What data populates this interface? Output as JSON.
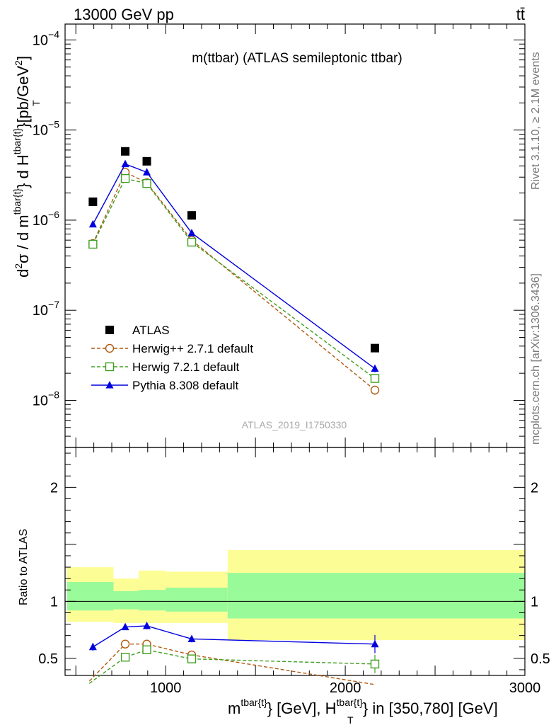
{
  "header": {
    "energy_label": "13000 GeV pp",
    "process_label": "tt̄"
  },
  "side_labels": {
    "rivet": "Rivet 3.1.10, ≥ 2.1M events",
    "mcplots": "mcplots.cern.ch [arXiv:1306.3436]"
  },
  "chart_data": [
    {
      "type": "scatter",
      "panel": "main",
      "title": "m(ttbar) (ATLAS semileptonic ttbar)",
      "ylabel": "d²σ / d m^{tbar{t}} d H_T^{tbar{t}} [pb/GeV²]",
      "watermark": "ATLAS_2019_I1750330",
      "yscale": "log",
      "xlim": [
        440,
        3000
      ],
      "ylim": [
        3e-09,
        0.00015
      ],
      "yticks": [
        {
          "base": "10",
          "exp": "−4",
          "value": 0.0001
        },
        {
          "base": "10",
          "exp": "−5",
          "value": 1e-05
        },
        {
          "base": "10",
          "exp": "−6",
          "value": 1e-06
        },
        {
          "base": "10",
          "exp": "−7",
          "value": 1e-07
        },
        {
          "base": "10",
          "exp": "−8",
          "value": 1e-08
        }
      ],
      "legend_position": "bottom-left",
      "series": [
        {
          "name": "ATLAS",
          "style": "data",
          "color": "#000000",
          "x": [
            595,
            775,
            895,
            1145,
            2165
          ],
          "y": [
            1.6e-06,
            5.8e-06,
            4.5e-06,
            1.13e-06,
            3.8e-08
          ]
        },
        {
          "name": "Herwig++ 2.7.1 default",
          "style": "dashed",
          "marker": "open-circle",
          "color": "#b05a10",
          "x": [
            595,
            775,
            895,
            1145,
            2165
          ],
          "y": [
            5.5e-07,
            3.4e-06,
            2.6e-06,
            6e-07,
            1.3e-08
          ],
          "yerr": [
            4e-09,
            1.5e-07,
            1e-07,
            3e-09,
            1.5e-09
          ]
        },
        {
          "name": "Herwig 7.2.1 default",
          "style": "dashed",
          "marker": "open-square",
          "color": "#3f9f1f",
          "x": [
            595,
            775,
            895,
            1145,
            2165
          ],
          "y": [
            5.4e-07,
            2.9e-06,
            2.55e-06,
            5.7e-07,
            1.75e-08
          ],
          "yerr": [
            4e-09,
            1.2e-07,
            1e-07,
            3e-09,
            1.5e-09
          ]
        },
        {
          "name": "Pythia 8.308 default",
          "style": "solid",
          "marker": "filled-triangle",
          "color": "#0000dd",
          "x": [
            595,
            775,
            895,
            1145,
            2165
          ],
          "y": [
            9e-07,
            4.2e-06,
            3.4e-06,
            7.2e-07,
            2.25e-08
          ],
          "yerr": [
            5e-09,
            1.5e-07,
            1.2e-07,
            3e-09,
            2e-09
          ]
        }
      ]
    },
    {
      "type": "line",
      "panel": "ratio",
      "ylabel": "Ratio to ATLAS",
      "xlabel_parts": [
        "m",
        "tbar{t}",
        "} [GeV], H",
        "tbar{t}",
        "T",
        "} in [350,780] [GeV]"
      ],
      "xlim": [
        440,
        3000
      ],
      "ylim": [
        0.35,
        2.35
      ],
      "xticks": [
        1000,
        2000,
        3000
      ],
      "xtick_labels": [
        "1000",
        "2000",
        "3000"
      ],
      "yticks": [
        0.5,
        1,
        2
      ],
      "ytick_labels": [
        "0.5",
        "1",
        "2"
      ],
      "bands": [
        {
          "xlo": 440,
          "xhi": 710,
          "outer": [
            0.82,
            1.3
          ],
          "inner": [
            0.92,
            1.17
          ]
        },
        {
          "xlo": 710,
          "xhi": 850,
          "outer": [
            0.81,
            1.2
          ],
          "inner": [
            0.93,
            1.09
          ]
        },
        {
          "xlo": 850,
          "xhi": 1000,
          "outer": [
            0.81,
            1.27
          ],
          "inner": [
            0.92,
            1.1
          ]
        },
        {
          "xlo": 1000,
          "xhi": 1345,
          "outer": [
            0.81,
            1.26
          ],
          "inner": [
            0.91,
            1.12
          ]
        },
        {
          "xlo": 1345,
          "xhi": 3000,
          "outer": [
            0.66,
            1.45
          ],
          "inner": [
            0.85,
            1.25
          ]
        }
      ],
      "band_colors": {
        "outer": "#fdfd96",
        "inner": "#99fa99"
      },
      "series": [
        {
          "name": "Herwig++ 2.7.1 default",
          "color": "#b05a10",
          "marker": "open-circle",
          "style": "dashed",
          "x": [
            575,
            775,
            895,
            1145,
            2165
          ],
          "y": [
            0.3,
            0.625,
            0.625,
            0.53,
            0.27
          ],
          "yerr": [
            0,
            0.012,
            0.02,
            0.025,
            0
          ]
        },
        {
          "name": "Herwig 7.2.1 default",
          "color": "#3f9f1f",
          "marker": "open-square",
          "style": "dashed",
          "x": [
            575,
            775,
            895,
            1145,
            2165
          ],
          "y": [
            0.28,
            0.51,
            0.575,
            0.495,
            0.45
          ],
          "yerr": [
            0,
            0.015,
            0.025,
            0.02,
            0.08
          ]
        },
        {
          "name": "Pythia 8.308 default",
          "color": "#0000dd",
          "marker": "filled-triangle",
          "style": "solid",
          "x": [
            595,
            775,
            895,
            1145,
            2165
          ],
          "y": [
            0.6,
            0.775,
            0.785,
            0.67,
            0.625
          ],
          "yerr": [
            0.035,
            0.02,
            0.03,
            0.03,
            0.08
          ]
        }
      ]
    }
  ]
}
